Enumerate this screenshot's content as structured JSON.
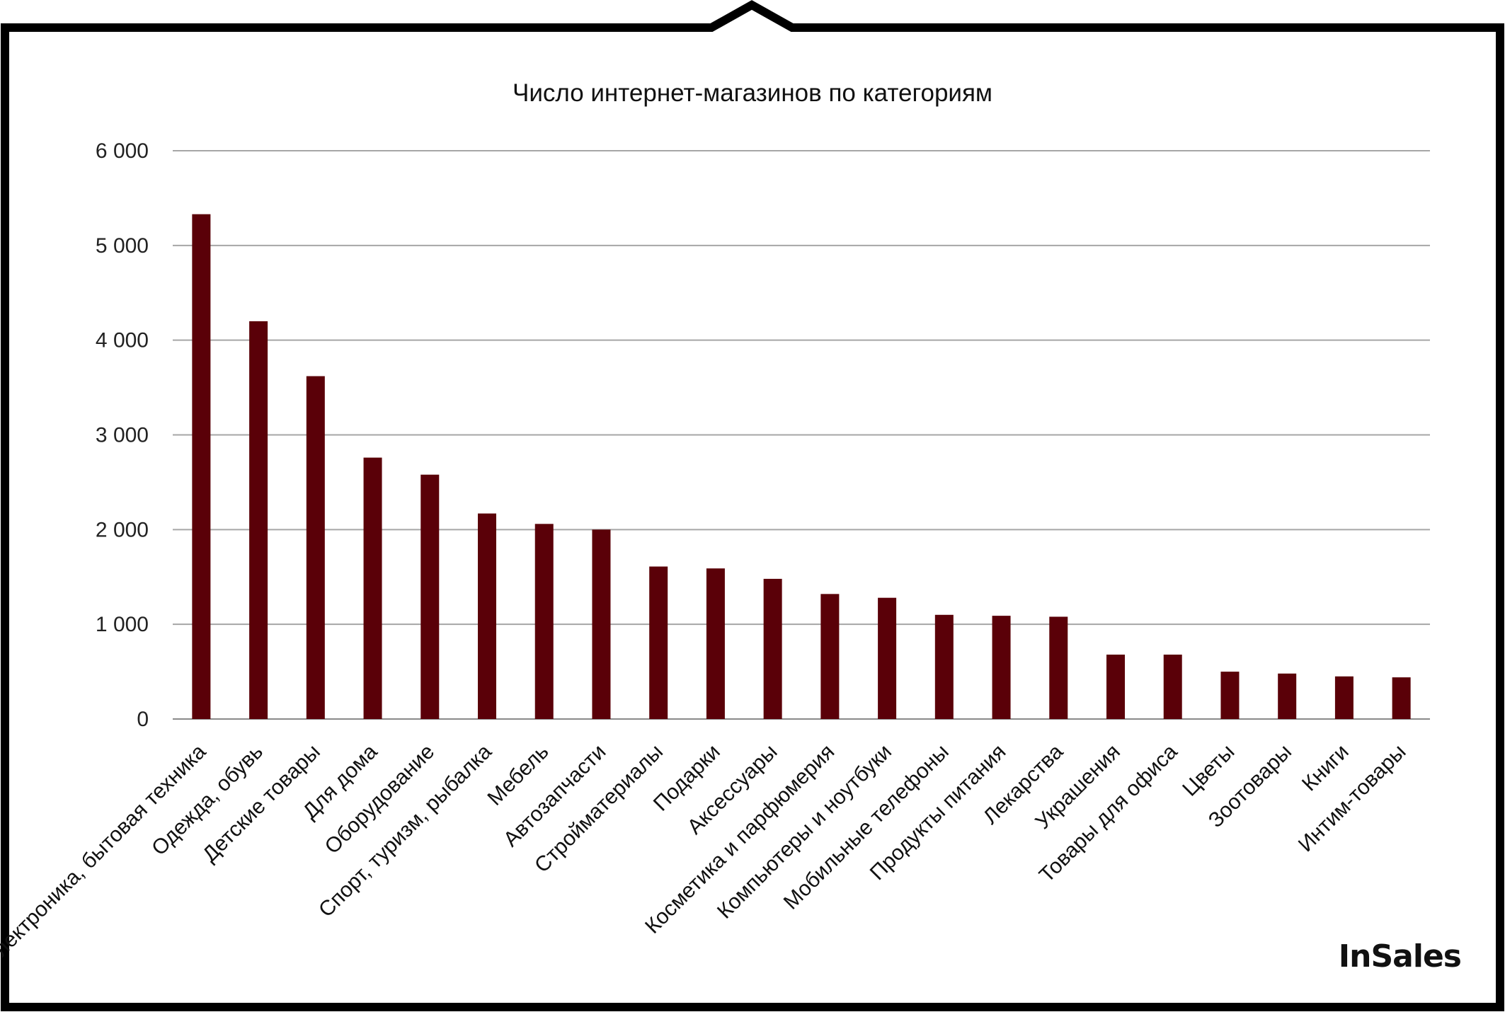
{
  "chart_data": {
    "type": "bar",
    "title": "Число интернет-магазинов по категориям",
    "xlabel": "",
    "ylabel": "",
    "ylim": [
      0,
      6000
    ],
    "yticks": [
      0,
      1000,
      2000,
      3000,
      4000,
      5000,
      6000
    ],
    "ytick_labels": [
      "0",
      "1 000",
      "2 000",
      "3 000",
      "4 000",
      "5 000",
      "6 000"
    ],
    "grid": true,
    "bar_color": "#5a0008",
    "categories": [
      "Электроника, бытовая техника",
      "Одежда, обувь",
      "Детские товары",
      "Для дома",
      "Оборудование",
      "Спорт, туризм, рыбалка",
      "Мебель",
      "Автозапчасти",
      "Стройматериалы",
      "Подарки",
      "Аксессуары",
      "Косметика и парфюмерия",
      "Компьютеры и ноутбуки",
      "Мобильные телефоны",
      "Продукты питания",
      "Лекарства",
      "Украшения",
      "Товары для офиса",
      "Цветы",
      "Зоотовары",
      "Книги",
      "Интим-товары"
    ],
    "values": [
      5330,
      4200,
      3620,
      2760,
      2580,
      2170,
      2060,
      2000,
      1610,
      1590,
      1480,
      1320,
      1280,
      1100,
      1090,
      1080,
      680,
      680,
      500,
      480,
      450,
      440
    ]
  },
  "logo": {
    "text": "InSales"
  }
}
